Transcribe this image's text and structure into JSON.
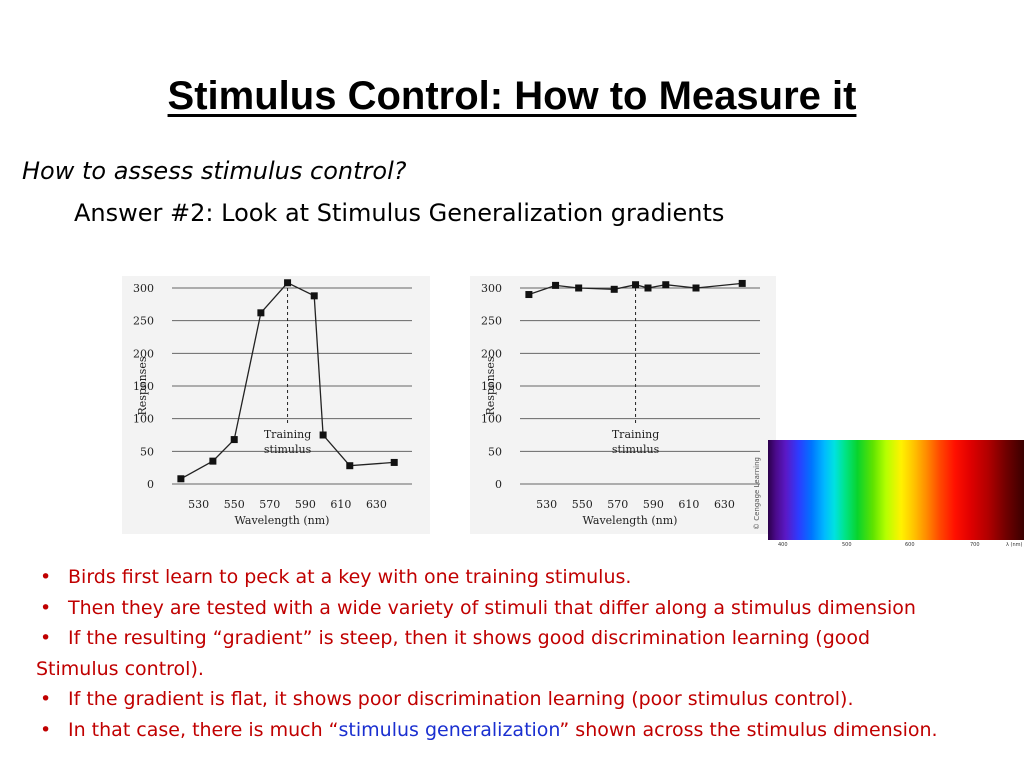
{
  "title": "Stimulus Control: How to Measure it",
  "question": "How to assess stimulus control?",
  "answer": "Answer #2:  Look at Stimulus Generalization gradients",
  "chart_data": [
    {
      "type": "line",
      "ylabel": "Responses",
      "xlabel": "Wavelength (nm)",
      "xticks": [
        530,
        550,
        570,
        590,
        610,
        630
      ],
      "yticks": [
        0,
        50,
        100,
        150,
        200,
        250,
        300
      ],
      "xlim": [
        515,
        650
      ],
      "ylim": [
        0,
        300
      ],
      "annotation_line1": "Training",
      "annotation_line2": "stimulus",
      "training_stimulus": 580,
      "x": [
        520,
        538,
        550,
        565,
        580,
        595,
        600,
        615,
        640
      ],
      "y": [
        8,
        35,
        68,
        262,
        308,
        288,
        75,
        28,
        33
      ]
    },
    {
      "type": "line",
      "ylabel": "Responses",
      "xlabel": "Wavelength (nm)",
      "xticks": [
        530,
        550,
        570,
        590,
        610,
        630
      ],
      "yticks": [
        0,
        50,
        100,
        150,
        200,
        250,
        300
      ],
      "xlim": [
        515,
        650
      ],
      "ylim": [
        0,
        300
      ],
      "annotation_line1": "Training",
      "annotation_line2": "stimulus",
      "training_stimulus": 580,
      "x": [
        520,
        535,
        548,
        568,
        580,
        587,
        597,
        614,
        640
      ],
      "y": [
        290,
        304,
        300,
        298,
        305,
        300,
        305,
        300,
        307
      ]
    }
  ],
  "spectrum": {
    "credit": "© Cengage Learning",
    "ticks": [
      "400",
      "500",
      "600",
      "700",
      "λ (nm)"
    ]
  },
  "bullets": [
    {
      "text": "Birds first learn to peck at a key with one training stimulus."
    },
    {
      "text": "Then they are tested with a wide variety of stimuli that differ along a stimulus dimension"
    },
    {
      "text": "If the resulting “gradient” is steep, then it shows good discrimination learning (good",
      "cont": "Stimulus control)."
    },
    {
      "text": "If the gradient is flat, it shows poor discrimination learning (poor stimulus control)."
    },
    {
      "pre": "In that case, there is much “",
      "term": "stimulus generalization",
      "post": "” shown across the stimulus dimension."
    }
  ],
  "colors": {
    "bullet_text": "#c00000",
    "highlight_term": "#1a2fd0"
  }
}
